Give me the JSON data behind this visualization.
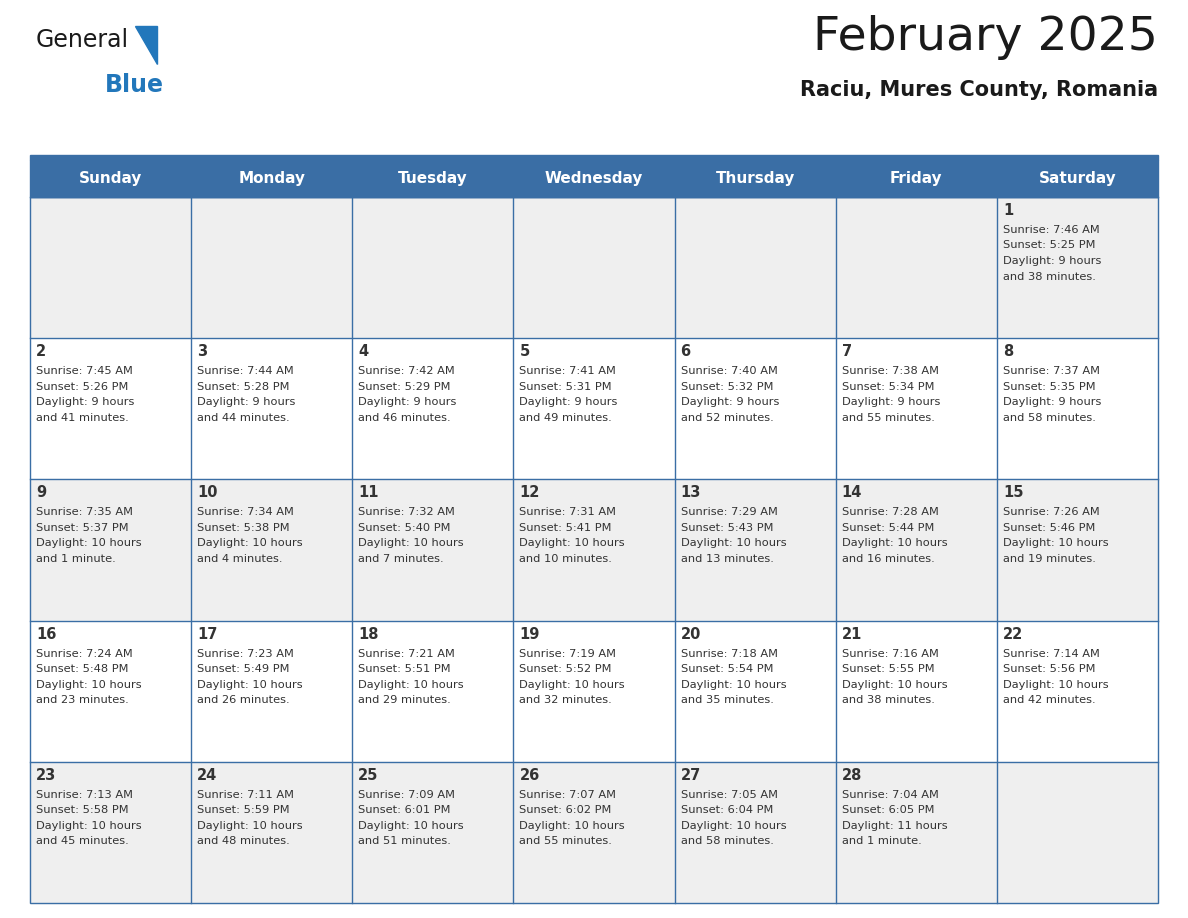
{
  "title": "February 2025",
  "subtitle": "Raciu, Mures County, Romania",
  "days_of_week": [
    "Sunday",
    "Monday",
    "Tuesday",
    "Wednesday",
    "Thursday",
    "Friday",
    "Saturday"
  ],
  "header_bg": "#3A6EA5",
  "header_text": "#FFFFFF",
  "cell_bg_row0": "#EFEFEF",
  "cell_bg_row1": "#FFFFFF",
  "cell_bg_row2": "#EFEFEF",
  "cell_bg_row3": "#FFFFFF",
  "cell_bg_row4": "#EFEFEF",
  "cell_border": "#3A6EA5",
  "day_num_color": "#333333",
  "info_color": "#333333",
  "title_color": "#1a1a1a",
  "subtitle_color": "#1a1a1a",
  "logo_general_color": "#1a1a1a",
  "logo_blue_color": "#2277BB",
  "logo_triangle_color": "#2277BB",
  "calendar_data": [
    {
      "day": 1,
      "col": 6,
      "row": 0,
      "sunrise": "7:46 AM",
      "sunset": "5:25 PM",
      "dl1": "Daylight: 9 hours",
      "dl2": "and 38 minutes."
    },
    {
      "day": 2,
      "col": 0,
      "row": 1,
      "sunrise": "7:45 AM",
      "sunset": "5:26 PM",
      "dl1": "Daylight: 9 hours",
      "dl2": "and 41 minutes."
    },
    {
      "day": 3,
      "col": 1,
      "row": 1,
      "sunrise": "7:44 AM",
      "sunset": "5:28 PM",
      "dl1": "Daylight: 9 hours",
      "dl2": "and 44 minutes."
    },
    {
      "day": 4,
      "col": 2,
      "row": 1,
      "sunrise": "7:42 AM",
      "sunset": "5:29 PM",
      "dl1": "Daylight: 9 hours",
      "dl2": "and 46 minutes."
    },
    {
      "day": 5,
      "col": 3,
      "row": 1,
      "sunrise": "7:41 AM",
      "sunset": "5:31 PM",
      "dl1": "Daylight: 9 hours",
      "dl2": "and 49 minutes."
    },
    {
      "day": 6,
      "col": 4,
      "row": 1,
      "sunrise": "7:40 AM",
      "sunset": "5:32 PM",
      "dl1": "Daylight: 9 hours",
      "dl2": "and 52 minutes."
    },
    {
      "day": 7,
      "col": 5,
      "row": 1,
      "sunrise": "7:38 AM",
      "sunset": "5:34 PM",
      "dl1": "Daylight: 9 hours",
      "dl2": "and 55 minutes."
    },
    {
      "day": 8,
      "col": 6,
      "row": 1,
      "sunrise": "7:37 AM",
      "sunset": "5:35 PM",
      "dl1": "Daylight: 9 hours",
      "dl2": "and 58 minutes."
    },
    {
      "day": 9,
      "col": 0,
      "row": 2,
      "sunrise": "7:35 AM",
      "sunset": "5:37 PM",
      "dl1": "Daylight: 10 hours",
      "dl2": "and 1 minute."
    },
    {
      "day": 10,
      "col": 1,
      "row": 2,
      "sunrise": "7:34 AM",
      "sunset": "5:38 PM",
      "dl1": "Daylight: 10 hours",
      "dl2": "and 4 minutes."
    },
    {
      "day": 11,
      "col": 2,
      "row": 2,
      "sunrise": "7:32 AM",
      "sunset": "5:40 PM",
      "dl1": "Daylight: 10 hours",
      "dl2": "and 7 minutes."
    },
    {
      "day": 12,
      "col": 3,
      "row": 2,
      "sunrise": "7:31 AM",
      "sunset": "5:41 PM",
      "dl1": "Daylight: 10 hours",
      "dl2": "and 10 minutes."
    },
    {
      "day": 13,
      "col": 4,
      "row": 2,
      "sunrise": "7:29 AM",
      "sunset": "5:43 PM",
      "dl1": "Daylight: 10 hours",
      "dl2": "and 13 minutes."
    },
    {
      "day": 14,
      "col": 5,
      "row": 2,
      "sunrise": "7:28 AM",
      "sunset": "5:44 PM",
      "dl1": "Daylight: 10 hours",
      "dl2": "and 16 minutes."
    },
    {
      "day": 15,
      "col": 6,
      "row": 2,
      "sunrise": "7:26 AM",
      "sunset": "5:46 PM",
      "dl1": "Daylight: 10 hours",
      "dl2": "and 19 minutes."
    },
    {
      "day": 16,
      "col": 0,
      "row": 3,
      "sunrise": "7:24 AM",
      "sunset": "5:48 PM",
      "dl1": "Daylight: 10 hours",
      "dl2": "and 23 minutes."
    },
    {
      "day": 17,
      "col": 1,
      "row": 3,
      "sunrise": "7:23 AM",
      "sunset": "5:49 PM",
      "dl1": "Daylight: 10 hours",
      "dl2": "and 26 minutes."
    },
    {
      "day": 18,
      "col": 2,
      "row": 3,
      "sunrise": "7:21 AM",
      "sunset": "5:51 PM",
      "dl1": "Daylight: 10 hours",
      "dl2": "and 29 minutes."
    },
    {
      "day": 19,
      "col": 3,
      "row": 3,
      "sunrise": "7:19 AM",
      "sunset": "5:52 PM",
      "dl1": "Daylight: 10 hours",
      "dl2": "and 32 minutes."
    },
    {
      "day": 20,
      "col": 4,
      "row": 3,
      "sunrise": "7:18 AM",
      "sunset": "5:54 PM",
      "dl1": "Daylight: 10 hours",
      "dl2": "and 35 minutes."
    },
    {
      "day": 21,
      "col": 5,
      "row": 3,
      "sunrise": "7:16 AM",
      "sunset": "5:55 PM",
      "dl1": "Daylight: 10 hours",
      "dl2": "and 38 minutes."
    },
    {
      "day": 22,
      "col": 6,
      "row": 3,
      "sunrise": "7:14 AM",
      "sunset": "5:56 PM",
      "dl1": "Daylight: 10 hours",
      "dl2": "and 42 minutes."
    },
    {
      "day": 23,
      "col": 0,
      "row": 4,
      "sunrise": "7:13 AM",
      "sunset": "5:58 PM",
      "dl1": "Daylight: 10 hours",
      "dl2": "and 45 minutes."
    },
    {
      "day": 24,
      "col": 1,
      "row": 4,
      "sunrise": "7:11 AM",
      "sunset": "5:59 PM",
      "dl1": "Daylight: 10 hours",
      "dl2": "and 48 minutes."
    },
    {
      "day": 25,
      "col": 2,
      "row": 4,
      "sunrise": "7:09 AM",
      "sunset": "6:01 PM",
      "dl1": "Daylight: 10 hours",
      "dl2": "and 51 minutes."
    },
    {
      "day": 26,
      "col": 3,
      "row": 4,
      "sunrise": "7:07 AM",
      "sunset": "6:02 PM",
      "dl1": "Daylight: 10 hours",
      "dl2": "and 55 minutes."
    },
    {
      "day": 27,
      "col": 4,
      "row": 4,
      "sunrise": "7:05 AM",
      "sunset": "6:04 PM",
      "dl1": "Daylight: 10 hours",
      "dl2": "and 58 minutes."
    },
    {
      "day": 28,
      "col": 5,
      "row": 4,
      "sunrise": "7:04 AM",
      "sunset": "6:05 PM",
      "dl1": "Daylight: 11 hours",
      "dl2": "and 1 minute."
    }
  ],
  "figw": 11.88,
  "figh": 9.18,
  "dpi": 100
}
